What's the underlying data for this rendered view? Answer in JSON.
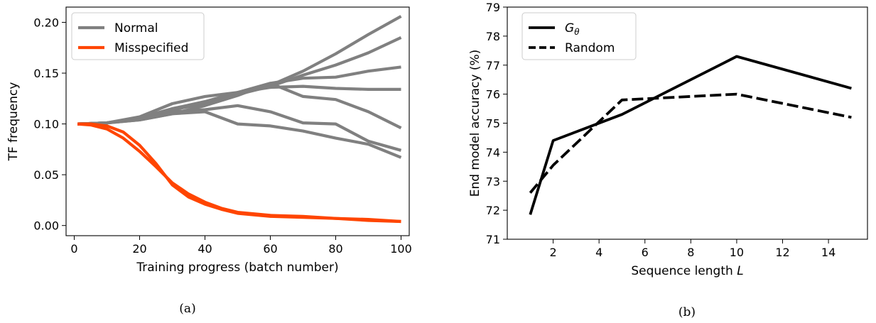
{
  "chart_data": [
    {
      "type": "line",
      "caption": "(a)",
      "xlabel": "Training progress (batch number)",
      "ylabel": "TF frequency",
      "xlim": [
        -2.5,
        102.5
      ],
      "ylim": [
        -0.01,
        0.215
      ],
      "xticks": [
        0,
        20,
        40,
        60,
        80,
        100
      ],
      "yticks": [
        0.0,
        0.05,
        0.1,
        0.15,
        0.2
      ],
      "ytick_labels": [
        "0.00",
        "0.05",
        "0.10",
        "0.15",
        "0.20"
      ],
      "legend": {
        "placement": "upper-left",
        "entries": [
          {
            "label": "Normal",
            "color": "#808080",
            "dashed": false
          },
          {
            "label": "Misspecified",
            "color": "#ff4500",
            "dashed": false
          }
        ]
      },
      "series": [
        {
          "group": "Normal",
          "color": "#808080",
          "x": [
            1,
            10,
            20,
            30,
            40,
            50,
            60,
            70,
            80,
            90,
            100
          ],
          "y": [
            0.1,
            0.101,
            0.106,
            0.115,
            0.121,
            0.13,
            0.138,
            0.152,
            0.169,
            0.188,
            0.206
          ]
        },
        {
          "group": "Normal",
          "color": "#808080",
          "x": [
            1,
            10,
            20,
            30,
            40,
            50,
            60,
            70,
            80,
            90,
            100
          ],
          "y": [
            0.1,
            0.101,
            0.105,
            0.114,
            0.12,
            0.129,
            0.137,
            0.148,
            0.158,
            0.17,
            0.185
          ]
        },
        {
          "group": "Normal",
          "color": "#808080",
          "x": [
            1,
            10,
            20,
            30,
            40,
            50,
            60,
            70,
            80,
            90,
            100
          ],
          "y": [
            0.1,
            0.101,
            0.106,
            0.115,
            0.122,
            0.131,
            0.14,
            0.145,
            0.146,
            0.152,
            0.156
          ]
        },
        {
          "group": "Normal",
          "color": "#808080",
          "x": [
            1,
            10,
            20,
            30,
            40,
            50,
            60,
            70,
            80,
            90,
            100
          ],
          "y": [
            0.1,
            0.101,
            0.107,
            0.12,
            0.127,
            0.131,
            0.136,
            0.137,
            0.135,
            0.134,
            0.134
          ]
        },
        {
          "group": "Normal",
          "color": "#808080",
          "x": [
            1,
            10,
            20,
            30,
            40,
            50,
            60,
            70,
            80,
            90,
            100
          ],
          "y": [
            0.1,
            0.101,
            0.104,
            0.11,
            0.118,
            0.128,
            0.14,
            0.127,
            0.124,
            0.112,
            0.096
          ]
        },
        {
          "group": "Normal",
          "color": "#808080",
          "x": [
            1,
            10,
            20,
            30,
            40,
            50,
            60,
            70,
            80,
            90,
            100
          ],
          "y": [
            0.1,
            0.101,
            0.105,
            0.112,
            0.114,
            0.118,
            0.112,
            0.101,
            0.1,
            0.083,
            0.074
          ]
        },
        {
          "group": "Normal",
          "color": "#808080",
          "x": [
            1,
            10,
            20,
            30,
            40,
            50,
            60,
            70,
            80,
            90,
            100
          ],
          "y": [
            0.1,
            0.101,
            0.104,
            0.11,
            0.112,
            0.1,
            0.098,
            0.093,
            0.086,
            0.08,
            0.067
          ]
        },
        {
          "group": "Misspecified",
          "color": "#ff4500",
          "x": [
            1,
            5,
            10,
            15,
            20,
            25,
            30,
            35,
            40,
            45,
            50,
            60,
            70,
            80,
            90,
            100
          ],
          "y": [
            0.1,
            0.099,
            0.095,
            0.086,
            0.073,
            0.058,
            0.042,
            0.031,
            0.023,
            0.017,
            0.013,
            0.01,
            0.009,
            0.007,
            0.006,
            0.004
          ]
        },
        {
          "group": "Misspecified",
          "color": "#ff4500",
          "x": [
            1,
            5,
            10,
            15,
            20,
            25,
            30,
            35,
            40,
            45,
            50,
            60,
            70,
            80,
            90,
            100
          ],
          "y": [
            0.1,
            0.1,
            0.098,
            0.092,
            0.079,
            0.061,
            0.04,
            0.028,
            0.021,
            0.016,
            0.012,
            0.009,
            0.008,
            0.007,
            0.005,
            0.004
          ]
        }
      ]
    },
    {
      "type": "line",
      "caption": "(b)",
      "xlabel": "Sequence length L",
      "ylabel": "End model accuracy (%)",
      "xlim": [
        0,
        15.7
      ],
      "ylim": [
        71,
        79
      ],
      "xticks": [
        2,
        4,
        6,
        8,
        10,
        12,
        14
      ],
      "yticks": [
        71,
        72,
        73,
        74,
        75,
        76,
        77,
        78,
        79
      ],
      "legend": {
        "placement": "upper-left",
        "entries": [
          {
            "label": "G",
            "subscript": "θ",
            "color": "#000000",
            "dashed": false
          },
          {
            "label": "Random",
            "color": "#000000",
            "dashed": true
          }
        ]
      },
      "series": [
        {
          "name": "G_θ",
          "color": "#000000",
          "dashed": false,
          "x": [
            1,
            2,
            5,
            10,
            15
          ],
          "y": [
            71.85,
            74.4,
            75.3,
            77.3,
            76.2
          ]
        },
        {
          "name": "Random",
          "color": "#000000",
          "dashed": true,
          "x": [
            1,
            2,
            5,
            10,
            15
          ],
          "y": [
            72.6,
            73.55,
            75.8,
            76.0,
            75.2
          ]
        }
      ]
    }
  ]
}
